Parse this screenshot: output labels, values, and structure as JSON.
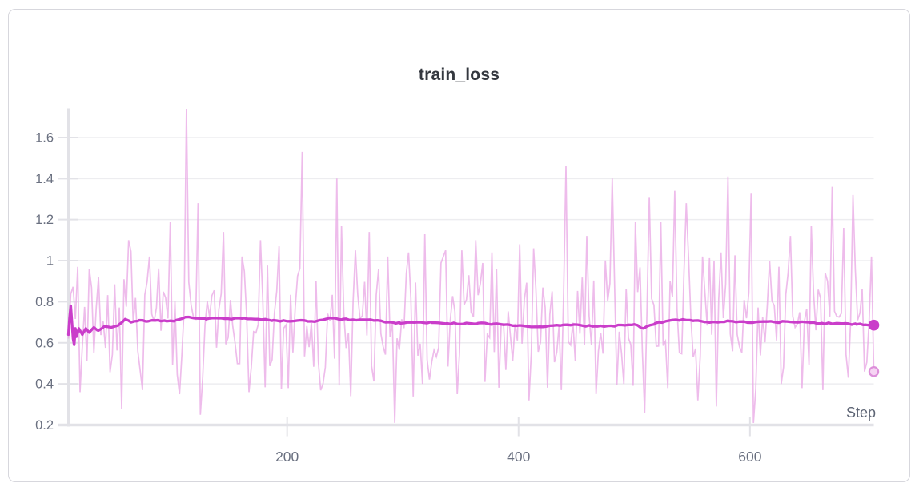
{
  "panel": {
    "title": "train_loss",
    "accent_color": "#ca3dca",
    "raw_color": "#e9a9e6",
    "background": "#ffffff",
    "border_color": "#d7d7dd"
  },
  "chart_data": {
    "type": "line",
    "title": "train_loss",
    "xlabel": "Step",
    "ylabel": "",
    "legend": "none",
    "grid": "horizontal",
    "x_range": [
      11,
      707
    ],
    "y_range": [
      0.2,
      1.74
    ],
    "x_ticks": [
      {
        "value": 200,
        "label": "200"
      },
      {
        "value": 400,
        "label": "400"
      },
      {
        "value": 600,
        "label": "600"
      }
    ],
    "y_ticks": [
      {
        "value": 0.2,
        "label": "0.2"
      },
      {
        "value": 0.4,
        "label": "0.4"
      },
      {
        "value": 0.6,
        "label": "0.6"
      },
      {
        "value": 0.8,
        "label": "0.8"
      },
      {
        "value": 1.0,
        "label": "1"
      },
      {
        "value": 1.2,
        "label": "1.2"
      },
      {
        "value": 1.4,
        "label": "1.4"
      },
      {
        "value": 1.6,
        "label": "1.6"
      }
    ],
    "style": {
      "axis_color": "#e2e2e7",
      "grid_color": "#ededf0",
      "tick_color": "#e2e2e7",
      "tick_label_color": "#6a7080",
      "step_label_color": "#5d6474",
      "title_color": "#34383f"
    },
    "series": [
      {
        "name": "train_loss",
        "role": "raw",
        "color": "#e9a9e6",
        "opacity": 0.78,
        "width": 1.7,
        "start_step": 11,
        "start_value": 0.62,
        "end_step": 707,
        "end_value": 0.46,
        "end_marker": {
          "fill": "#f6d4f3",
          "stroke": "#dd90da",
          "radius": 5.6
        },
        "noise": {
          "seed": 7,
          "step": 2,
          "baseline": 0.7,
          "spread_base": 0.28,
          "spread_rand": 0.5,
          "clamp": [
            0.31,
            1.08
          ]
        },
        "spikes_high": [
          [
            18,
            0.97
          ],
          [
            28,
            0.96
          ],
          [
            63,
            1.1
          ],
          [
            80,
            1.02
          ],
          [
            99,
            1.19
          ],
          [
            112,
            1.74
          ],
          [
            123,
            1.28
          ],
          [
            144,
            1.14
          ],
          [
            160,
            1.02
          ],
          [
            177,
            1.1
          ],
          [
            192,
            1.07
          ],
          [
            213,
            1.53
          ],
          [
            243,
            1.4
          ],
          [
            247,
            1.17
          ],
          [
            258,
            1.05
          ],
          [
            270,
            1.14
          ],
          [
            286,
            1.02
          ],
          [
            305,
            1.04
          ],
          [
            319,
            1.13
          ],
          [
            336,
            1.05
          ],
          [
            350,
            1.05
          ],
          [
            362,
            1.1
          ],
          [
            376,
            1.04
          ],
          [
            400,
            1.08
          ],
          [
            412,
            1.06
          ],
          [
            441,
            1.46
          ],
          [
            458,
            1.12
          ],
          [
            481,
            1.4
          ],
          [
            501,
            1.19
          ],
          [
            513,
            1.31
          ],
          [
            522,
            1.19
          ],
          [
            534,
            1.34
          ],
          [
            544,
            1.28
          ],
          [
            559,
            1.02
          ],
          [
            569,
            1.0
          ],
          [
            581,
            1.41
          ],
          [
            600,
            1.33
          ],
          [
            617,
            1.0
          ],
          [
            635,
            1.12
          ],
          [
            653,
            1.17
          ],
          [
            671,
            1.36
          ],
          [
            680,
            1.16
          ],
          [
            688,
            1.32
          ],
          [
            704,
            1.02
          ]
        ],
        "spikes_low": [
          [
            21,
            0.36
          ],
          [
            56,
            0.28
          ],
          [
            75,
            0.37
          ],
          [
            107,
            0.35
          ],
          [
            125,
            0.25
          ],
          [
            166,
            0.36
          ],
          [
            201,
            0.38
          ],
          [
            230,
            0.4
          ],
          [
            255,
            0.34
          ],
          [
            292,
            0.21
          ],
          [
            316,
            0.4
          ],
          [
            346,
            0.35
          ],
          [
            371,
            0.41
          ],
          [
            408,
            0.32
          ],
          [
            436,
            0.37
          ],
          [
            467,
            0.35
          ],
          [
            490,
            0.4
          ],
          [
            508,
            0.26
          ],
          [
            528,
            0.38
          ],
          [
            554,
            0.32
          ],
          [
            571,
            0.29
          ],
          [
            603,
            0.21
          ],
          [
            626,
            0.4
          ],
          [
            644,
            0.38
          ],
          [
            663,
            0.37
          ],
          [
            684,
            0.43
          ],
          [
            698,
            0.46
          ]
        ]
      },
      {
        "name": "train_loss (smoothed)",
        "role": "smoothed",
        "color": "#ca3dca",
        "opacity": 1,
        "width": 3.3,
        "end_step": 707,
        "end_value": 0.686,
        "end_marker": {
          "fill": "#ca3dca",
          "stroke": "none",
          "radius": 6.8
        },
        "points": [
          [
            11,
            0.64
          ],
          [
            12,
            0.72
          ],
          [
            13,
            0.78
          ],
          [
            15,
            0.62
          ],
          [
            16,
            0.59
          ],
          [
            17,
            0.67
          ],
          [
            18,
            0.63
          ],
          [
            20,
            0.67
          ],
          [
            23,
            0.64
          ],
          [
            26,
            0.67
          ],
          [
            29,
            0.65
          ],
          [
            33,
            0.675
          ],
          [
            37,
            0.66
          ],
          [
            42,
            0.68
          ],
          [
            48,
            0.675
          ],
          [
            55,
            0.69
          ],
          [
            60,
            0.715
          ],
          [
            65,
            0.7
          ],
          [
            72,
            0.71
          ],
          [
            80,
            0.705
          ],
          [
            88,
            0.71
          ],
          [
            96,
            0.705
          ],
          [
            104,
            0.71
          ],
          [
            112,
            0.725
          ],
          [
            120,
            0.72
          ],
          [
            130,
            0.715
          ],
          [
            140,
            0.72
          ],
          [
            152,
            0.715
          ],
          [
            163,
            0.72
          ],
          [
            175,
            0.715
          ],
          [
            188,
            0.71
          ],
          [
            200,
            0.705
          ],
          [
            212,
            0.71
          ],
          [
            225,
            0.705
          ],
          [
            238,
            0.72
          ],
          [
            248,
            0.715
          ],
          [
            260,
            0.71
          ],
          [
            272,
            0.713
          ],
          [
            285,
            0.7
          ],
          [
            298,
            0.695
          ],
          [
            312,
            0.7
          ],
          [
            325,
            0.698
          ],
          [
            338,
            0.695
          ],
          [
            352,
            0.692
          ],
          [
            365,
            0.696
          ],
          [
            378,
            0.692
          ],
          [
            392,
            0.688
          ],
          [
            405,
            0.682
          ],
          [
            418,
            0.678
          ],
          [
            430,
            0.684
          ],
          [
            442,
            0.688
          ],
          [
            455,
            0.684
          ],
          [
            468,
            0.68
          ],
          [
            480,
            0.683
          ],
          [
            492,
            0.685
          ],
          [
            500,
            0.69
          ],
          [
            508,
            0.67
          ],
          [
            518,
            0.695
          ],
          [
            530,
            0.708
          ],
          [
            542,
            0.714
          ],
          [
            552,
            0.708
          ],
          [
            562,
            0.702
          ],
          [
            572,
            0.7
          ],
          [
            582,
            0.706
          ],
          [
            592,
            0.703
          ],
          [
            602,
            0.698
          ],
          [
            612,
            0.704
          ],
          [
            622,
            0.7
          ],
          [
            632,
            0.704
          ],
          [
            642,
            0.7
          ],
          [
            652,
            0.698
          ],
          [
            662,
            0.696
          ],
          [
            672,
            0.693
          ],
          [
            682,
            0.695
          ],
          [
            692,
            0.69
          ],
          [
            700,
            0.688
          ],
          [
            707,
            0.686
          ]
        ]
      }
    ]
  }
}
